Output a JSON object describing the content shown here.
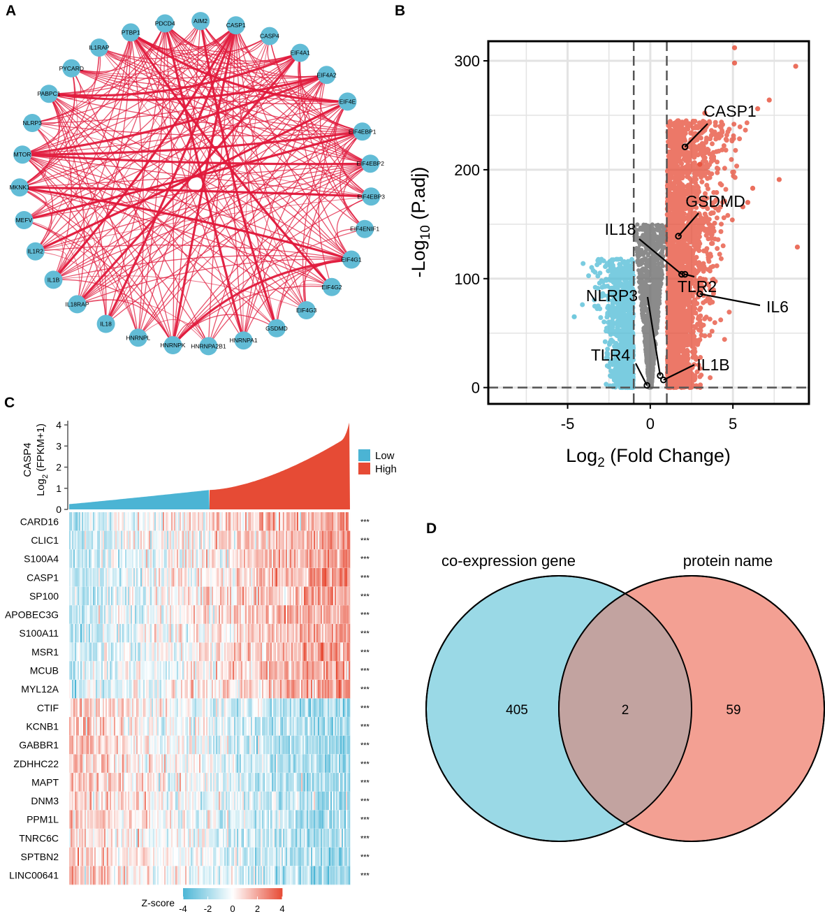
{
  "panels": {
    "a": "A",
    "b": "B",
    "c": "C",
    "d": "D"
  },
  "colors": {
    "node": "#62bcd6",
    "edge": "#e01a3c",
    "up": "#e64b35",
    "down": "#4dbbd5",
    "ns": "#6e6e6e",
    "low": "#4bb4d4",
    "high": "#e64b35",
    "venn_left": "#9ad9e6",
    "venn_right": "#f3a093",
    "venn_overlap": "#c2a3a0"
  },
  "chart_data": [
    {
      "type": "network",
      "nodes": [
        "PDCD4",
        "AIM2",
        "CASP1",
        "CASP4",
        "EIF4A1",
        "EIF4A2",
        "EIF4E",
        "EIF4EBP1",
        "EIF4EBP2",
        "EIF4EBP3",
        "EIF4ENIF1",
        "EIF4G1",
        "EIF4G2",
        "EIF4G3",
        "GSDMD",
        "HNRNPA1",
        "HNRNPA2B1",
        "HNRNPK",
        "HNRNPL",
        "IL18",
        "IL18RAP",
        "IL1B",
        "IL1R2",
        "MEFV",
        "MKNK1",
        "MTOR",
        "NLRP3",
        "PABPC1",
        "PYCARD",
        "IL1RAP",
        "PTBP1"
      ],
      "hubs": [
        "CASP1",
        "EIF4A1",
        "EIF4A2",
        "EIF4E",
        "EIF4EBP1",
        "EIF4EBP2",
        "EIF4G1",
        "MTOR",
        "MKNK1",
        "PABPC1",
        "PTBP1",
        "HNRNPK",
        "PDCD4"
      ]
    },
    {
      "type": "scatter",
      "subtype": "volcano",
      "xlabel_main": "Log",
      "xlabel_sub": "2",
      "xlabel_rest": " (Fold Change)",
      "ylabel_main": "-Log",
      "ylabel_sub": "10",
      "ylabel_rest": " (P.adj)",
      "xlim": [
        -9.8,
        9.6
      ],
      "ylim": [
        -15,
        318
      ],
      "xticks": [
        -5,
        0,
        5
      ],
      "yticks": [
        0,
        100,
        200,
        300
      ],
      "fc_threshold": [
        -1,
        1
      ],
      "padj_line": 0,
      "labels": [
        {
          "gene": "CASP1",
          "x": 2.1,
          "y": 221
        },
        {
          "gene": "GSDMD",
          "x": 1.7,
          "y": 139
        },
        {
          "gene": "IL18",
          "x": 1.9,
          "y": 104
        },
        {
          "gene": "TLR2",
          "x": 2.1,
          "y": 104
        },
        {
          "gene": "IL6",
          "x": 3.0,
          "y": 86
        },
        {
          "gene": "NLRP3",
          "x": 0.6,
          "y": 11
        },
        {
          "gene": "IL1B",
          "x": 0.8,
          "y": 7
        },
        {
          "gene": "TLR4",
          "x": -0.2,
          "y": 2
        }
      ],
      "outliers": [
        [
          5.1,
          312
        ],
        [
          5.1,
          298
        ],
        [
          8.8,
          295
        ],
        [
          7.2,
          264
        ],
        [
          6.5,
          256
        ],
        [
          7.8,
          191
        ],
        [
          6.2,
          183
        ],
        [
          8.9,
          129
        ],
        [
          5.9,
          170
        ],
        [
          5.6,
          166
        ],
        [
          -4.6,
          65
        ],
        [
          3.3,
          252
        ],
        [
          3.0,
          205
        ]
      ]
    },
    {
      "type": "bar",
      "subtype": "ranked-expression",
      "ylabel_gene": "CASP4",
      "ylabel_main": "Log",
      "ylabel_sub": "2",
      "ylabel_rest": " (FPKM+1)",
      "ylim": [
        0,
        4.3
      ],
      "yticks": [
        0,
        1,
        2,
        3,
        4
      ],
      "legend": [
        "Low",
        "High"
      ],
      "min_value": 0.25,
      "split_value": 0.92,
      "max_value": 4.25
    },
    {
      "type": "heatmap",
      "rows": [
        "CARD16",
        "CLIC1",
        "S100A4",
        "CASP1",
        "SP100",
        "APOBEC3G",
        "S100A11",
        "MSR1",
        "MCUB",
        "MYL12A",
        "CTIF",
        "KCNB1",
        "GABBR1",
        "ZDHHC22",
        "MAPT",
        "DNM3",
        "PPM1L",
        "TNRC6C",
        "SPTBN2",
        "LINC00641"
      ],
      "directions": [
        1,
        1,
        1,
        1,
        1,
        1,
        1,
        1,
        1,
        1,
        -1,
        -1,
        -1,
        -1,
        -1,
        -1,
        -1,
        -1,
        -1,
        -1
      ],
      "significance": [
        "***",
        "***",
        "***",
        "***",
        "***",
        "***",
        "***",
        "***",
        "***",
        "***",
        "***",
        "***",
        "***",
        "***",
        "***",
        "***",
        "***",
        "***",
        "***",
        "***"
      ],
      "colorbar_label": "Z-score",
      "colorbar_ticks": [
        -4,
        -2,
        0,
        2,
        4
      ]
    },
    {
      "type": "venn",
      "sets": [
        "co-expression gene",
        "protein name"
      ],
      "left_only": 405,
      "overlap": 2,
      "right_only": 59
    }
  ]
}
